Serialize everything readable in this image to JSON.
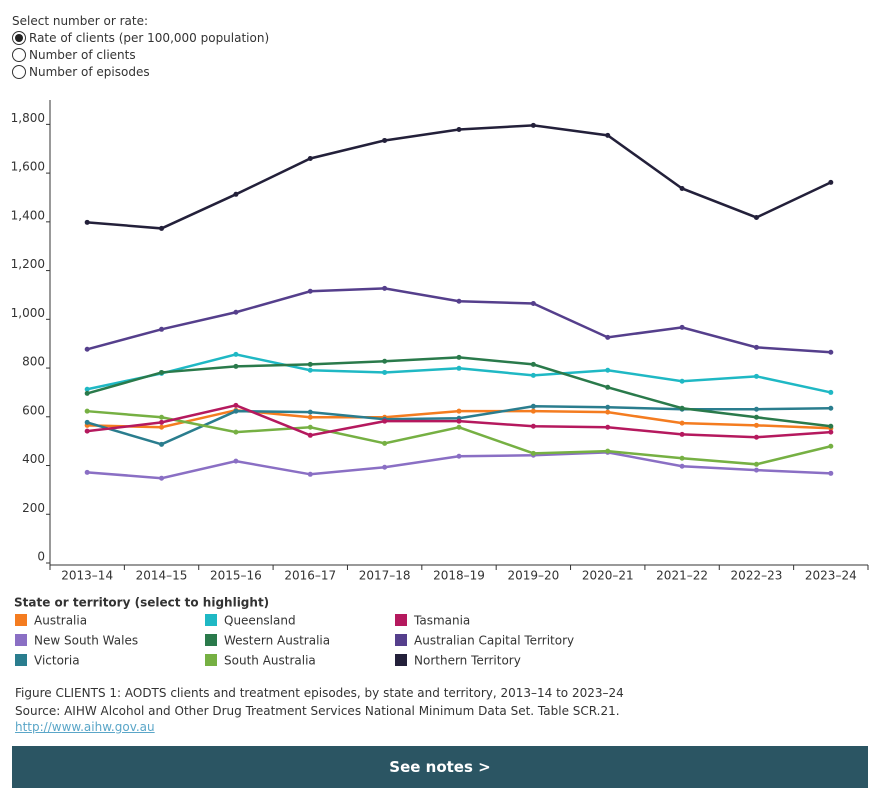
{
  "controls": {
    "label": "Select number or rate:",
    "options": [
      "Rate of clients (per 100,000 population)",
      "Number of clients",
      "Number of episodes"
    ],
    "selected": 0
  },
  "chart_data": {
    "type": "line",
    "categories": [
      "2013–14",
      "2014–15",
      "2015–16",
      "2016–17",
      "2017–18",
      "2018–19",
      "2019–20",
      "2020–21",
      "2021–22",
      "2022–23",
      "2023–24"
    ],
    "ylim": [
      0,
      1900
    ],
    "yticks": [
      0,
      200,
      400,
      600,
      800,
      {
        "value": 1000,
        "label": "1,000"
      },
      {
        "value": 1200,
        "label": "1,200"
      },
      {
        "value": 1400,
        "label": "1,400"
      },
      {
        "value": 1600,
        "label": "1,600"
      },
      {
        "value": 1800,
        "label": "1,800"
      }
    ],
    "legend_title": "State or territory (select to highlight)",
    "series": [
      {
        "name": "Australia",
        "color": "#f47c20",
        "values": [
          565,
          557,
          627,
          598,
          598,
          623,
          623,
          619,
          574,
          565,
          553
        ]
      },
      {
        "name": "New South Wales",
        "color": "#8a6fc4",
        "values": [
          372,
          348,
          418,
          364,
          393,
          438,
          442,
          454,
          397,
          381,
          368
        ]
      },
      {
        "name": "Victoria",
        "color": "#2a7d8e",
        "values": [
          577,
          487,
          623,
          619,
          590,
          594,
          643,
          639,
          631,
          631,
          635
        ]
      },
      {
        "name": "Queensland",
        "color": "#1fb8c4",
        "values": [
          713,
          778,
          856,
          791,
          782,
          799,
          770,
          791,
          746,
          766,
          700
        ]
      },
      {
        "name": "Western Australia",
        "color": "#2a7a4b",
        "values": [
          696,
          782,
          807,
          815,
          828,
          844,
          815,
          721,
          635,
          598,
          561
        ]
      },
      {
        "name": "South Australia",
        "color": "#76b043",
        "values": [
          623,
          598,
          537,
          557,
          491,
          557,
          450,
          459,
          430,
          405,
          479
        ]
      },
      {
        "name": "Tasmania",
        "color": "#b5195e",
        "values": [
          541,
          577,
          647,
          524,
          582,
          582,
          561,
          557,
          528,
          516,
          537
        ]
      },
      {
        "name": "Australian Capital Territory",
        "color": "#553f8c",
        "values": [
          877,
          959,
          1029,
          1115,
          1127,
          1074,
          1065,
          926,
          967,
          885,
          865
        ]
      },
      {
        "name": "Northern Territory",
        "color": "#23203a",
        "values": [
          1398,
          1373,
          1513,
          1660,
          1734,
          1779,
          1796,
          1755,
          1537,
          1418,
          1562
        ]
      }
    ]
  },
  "footer": {
    "caption": "Figure CLIENTS 1: AODTS clients and treatment episodes, by state and territory, 2013–14 to 2023–24",
    "source": "Source: AIHW Alcohol and Other Drug Treatment Services National Minimum Data Set. Table SCR.21.",
    "link": "http://www.aihw.gov.au"
  },
  "button": "See notes >"
}
